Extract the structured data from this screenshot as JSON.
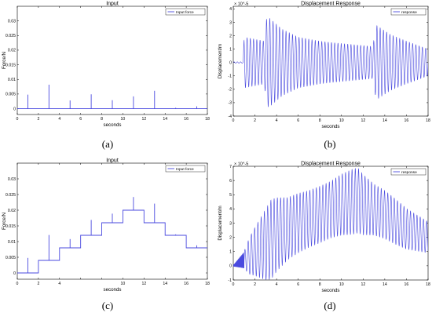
{
  "panel_labels": {
    "a": "(a)",
    "b": "(b)",
    "c": "(c)",
    "d": "(d)"
  },
  "colors": {
    "series": "#4a4adf",
    "axis": "#000000",
    "background": "#ffffff"
  },
  "chart_data": [
    {
      "id": "a",
      "type": "line",
      "title": "Input",
      "xlabel": "seconds",
      "ylabel": "Force/N",
      "xlim": [
        0,
        18
      ],
      "ylim": [
        -0.002,
        0.035
      ],
      "xticks": [
        0,
        2,
        4,
        6,
        8,
        10,
        12,
        14,
        16,
        18
      ],
      "xtick_labels": [
        "0",
        "2",
        "4",
        "6",
        "8",
        "10",
        "12",
        "14",
        "16",
        "18"
      ],
      "yticks": [
        0,
        0.005,
        0.01,
        0.015,
        0.02,
        0.025,
        0.03
      ],
      "ytick_labels": [
        "0",
        "0.005",
        "0.01",
        "0.015",
        "0.02",
        "0.025",
        "0.03"
      ],
      "legend": "top-right",
      "grid": false,
      "series": [
        {
          "name": "Input force",
          "signal": "impulses",
          "base": 0,
          "impulses": [
            {
              "t": 1,
              "amp": 0.0048
            },
            {
              "t": 3,
              "amp": 0.0082
            },
            {
              "t": 5,
              "amp": 0.0028
            },
            {
              "t": 7,
              "amp": 0.0049
            },
            {
              "t": 9,
              "amp": 0.0029
            },
            {
              "t": 11,
              "amp": 0.0042
            },
            {
              "t": 13,
              "amp": 0.0061
            },
            {
              "t": 15,
              "amp": 0.0003
            },
            {
              "t": 17,
              "amp": 0.0008
            }
          ]
        }
      ]
    },
    {
      "id": "b",
      "type": "line",
      "title": "Displacement Response",
      "xlabel": "seconds",
      "ylabel": "Displacement/m",
      "yexponent": "× 10^-5",
      "xlim": [
        0,
        18
      ],
      "ylim": [
        -4,
        4.2
      ],
      "xticks": [
        0,
        2,
        4,
        6,
        8,
        10,
        12,
        14,
        16,
        18
      ],
      "xtick_labels": [
        "0",
        "2",
        "4",
        "6",
        "8",
        "10",
        "12",
        "14",
        "16",
        "18"
      ],
      "yticks": [
        -4,
        -3,
        -2,
        -1,
        0,
        1,
        2,
        3,
        4
      ],
      "ytick_labels": [
        "-4",
        "-3",
        "-2",
        "-1",
        "0",
        "1",
        "2",
        "3",
        "4"
      ],
      "legend": "top-right",
      "grid": false,
      "series": [
        {
          "name": "response",
          "signal": "oscillation",
          "start": 0,
          "offset": 0,
          "period": 0.3,
          "envelope_t": [
            0,
            0.9,
            1.0,
            2.9,
            3.0,
            3.3,
            4.5,
            6.0,
            8.0,
            9.0,
            12.9,
            13.2,
            14.5,
            16.0,
            18.0
          ],
          "envelope_amp": [
            0.05,
            0.05,
            1.9,
            1.6,
            3.2,
            3.35,
            2.5,
            1.9,
            1.6,
            1.5,
            1.2,
            2.8,
            2.1,
            1.6,
            1.0
          ]
        }
      ]
    },
    {
      "id": "c",
      "type": "line",
      "title": "Input",
      "xlabel": "seconds",
      "ylabel": "Force/N",
      "xlim": [
        0,
        18
      ],
      "ylim": [
        -0.002,
        0.035
      ],
      "xticks": [
        0,
        2,
        4,
        6,
        8,
        10,
        12,
        14,
        16,
        18
      ],
      "xtick_labels": [
        "0",
        "2",
        "4",
        "",
        "",
        "10",
        "12",
        "14",
        "16",
        "18"
      ],
      "yticks": [
        0,
        0.005,
        0.01,
        0.015,
        0.02,
        0.025,
        0.03
      ],
      "ytick_labels": [
        "0",
        "0.005",
        "0.01",
        "0.015",
        "0.02",
        "0.025",
        "0.03"
      ],
      "legend": "top-right",
      "grid": false,
      "series": [
        {
          "name": "Input force",
          "signal": "staircase",
          "steps": [
            {
              "t": 0,
              "level": 0
            },
            {
              "t": 2,
              "level": 0.004
            },
            {
              "t": 4,
              "level": 0.008
            },
            {
              "t": 6,
              "level": 0.012
            },
            {
              "t": 8,
              "level": 0.016
            },
            {
              "t": 10,
              "level": 0.02
            },
            {
              "t": 12,
              "level": 0.016
            },
            {
              "t": 14,
              "level": 0.012
            },
            {
              "t": 16,
              "level": 0.008
            }
          ],
          "end": 18,
          "impulses": [
            {
              "t": 1,
              "amp": 0.0048
            },
            {
              "t": 3,
              "amp": 0.0081
            },
            {
              "t": 5,
              "amp": 0.0028
            },
            {
              "t": 7,
              "amp": 0.0049
            },
            {
              "t": 9,
              "amp": 0.0029
            },
            {
              "t": 11,
              "amp": 0.0042
            },
            {
              "t": 13,
              "amp": 0.0061
            },
            {
              "t": 15,
              "amp": 0.0003
            },
            {
              "t": 17,
              "amp": 0.0008
            }
          ]
        }
      ]
    },
    {
      "id": "d",
      "type": "line",
      "title": "Displacement Response",
      "xlabel": "seconds",
      "ylabel": "Displacement/m",
      "yexponent": "× 10^-5",
      "xlim": [
        0,
        18
      ],
      "ylim": [
        -1,
        7
      ],
      "xticks": [
        0,
        2,
        4,
        6,
        8,
        10,
        12,
        14,
        16,
        18
      ],
      "xtick_labels": [
        "0",
        "2",
        "4",
        "6",
        "8",
        "10",
        "12",
        "14",
        "16",
        "18"
      ],
      "yticks": [
        -1,
        0,
        1,
        2,
        3,
        4,
        5,
        6,
        7
      ],
      "ytick_labels": [
        "-1",
        "0",
        "1",
        "2",
        "3",
        "4",
        "5",
        "6",
        "7"
      ],
      "legend": "top-right",
      "grid": false,
      "series": [
        {
          "name": "response",
          "signal": "oscillation",
          "start": 1,
          "period": 0.3,
          "offset_t": [
            0,
            1,
            2,
            3,
            4,
            6,
            8,
            10,
            11.5,
            12,
            14,
            16,
            18
          ],
          "offset_v": [
            0,
            0.4,
            1.0,
            1.5,
            2.2,
            3.0,
            3.6,
            4.3,
            4.6,
            4.3,
            3.6,
            2.6,
            2.0
          ],
          "envelope_t": [
            0,
            1.0,
            1.5,
            3.0,
            3.5,
            5.0,
            7.0,
            9.0,
            11.0,
            11.5,
            13.0,
            15.0,
            18.0
          ],
          "envelope_amp": [
            0.05,
            0.6,
            1.3,
            2.5,
            2.8,
            2.2,
            2.0,
            2.0,
            2.3,
            2.3,
            1.8,
            1.6,
            1.1
          ]
        }
      ]
    }
  ]
}
